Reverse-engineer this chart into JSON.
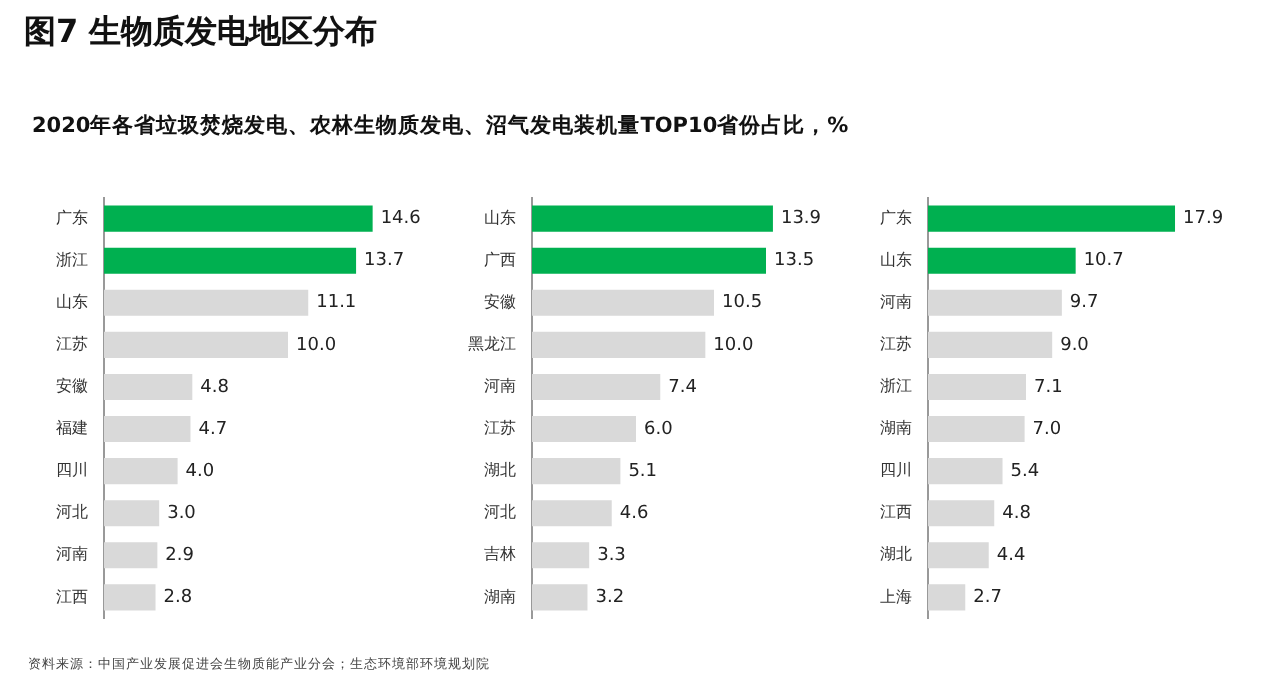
{
  "chart_data": [
    {
      "type": "bar",
      "orientation": "horizontal",
      "title": "图7  生物质发电地区分布",
      "subtitle": "2020年各省垃圾焚烧发电、农林生物质发电、沼气发电装机量TOP10省份占比，%",
      "annotations": [
        "资料来源：中国产业发展促进会生物质能产业分会；生态环境部环境规划院"
      ],
      "tick_labels": "y",
      "categories": [
        "广东",
        "浙江",
        "山东",
        "江苏",
        "安徽",
        "福建",
        "四川",
        "河北",
        "河南",
        "江西"
      ],
      "values": [
        14.6,
        13.7,
        11.1,
        10.0,
        4.8,
        4.7,
        4.0,
        3.0,
        2.9,
        2.8
      ],
      "value_labels": [
        "14.6",
        "13.7",
        "11.1",
        "10.0",
        "4.8",
        "4.7",
        "4.0",
        "3.0",
        "2.9",
        "2.8"
      ],
      "colors": [
        "#00b050",
        "#00b050",
        "#d9d9d9",
        "#d9d9d9",
        "#d9d9d9",
        "#d9d9d9",
        "#d9d9d9",
        "#d9d9d9",
        "#d9d9d9",
        "#d9d9d9"
      ]
    },
    {
      "type": "bar",
      "orientation": "horizontal",
      "tick_labels": "y",
      "categories": [
        "山东",
        "广西",
        "安徽",
        "黑龙江",
        "河南",
        "江苏",
        "湖北",
        "河北",
        "吉林",
        "湖南"
      ],
      "values": [
        13.9,
        13.5,
        10.5,
        10.0,
        7.4,
        6.0,
        5.1,
        4.6,
        3.3,
        3.2
      ],
      "value_labels": [
        "13.9",
        "13.5",
        "10.5",
        "10.0",
        "7.4",
        "6.0",
        "5.1",
        "4.6",
        "3.3",
        "3.2"
      ],
      "colors": [
        "#00b050",
        "#00b050",
        "#d9d9d9",
        "#d9d9d9",
        "#d9d9d9",
        "#d9d9d9",
        "#d9d9d9",
        "#d9d9d9",
        "#d9d9d9",
        "#d9d9d9"
      ]
    },
    {
      "type": "bar",
      "orientation": "horizontal",
      "tick_labels": "y",
      "categories": [
        "广东",
        "山东",
        "河南",
        "江苏",
        "浙江",
        "湖南",
        "四川",
        "江西",
        "湖北",
        "上海"
      ],
      "values": [
        17.9,
        10.7,
        9.7,
        9.0,
        7.1,
        7.0,
        5.4,
        4.8,
        4.4,
        2.7
      ],
      "value_labels": [
        "17.9",
        "10.7",
        "9.7",
        "9.0",
        "7.1",
        "7.0",
        "5.4",
        "4.8",
        "4.4",
        "2.7"
      ],
      "colors": [
        "#00b050",
        "#00b050",
        "#d9d9d9",
        "#d9d9d9",
        "#d9d9d9",
        "#d9d9d9",
        "#d9d9d9",
        "#d9d9d9",
        "#d9d9d9",
        "#d9d9d9"
      ]
    }
  ]
}
